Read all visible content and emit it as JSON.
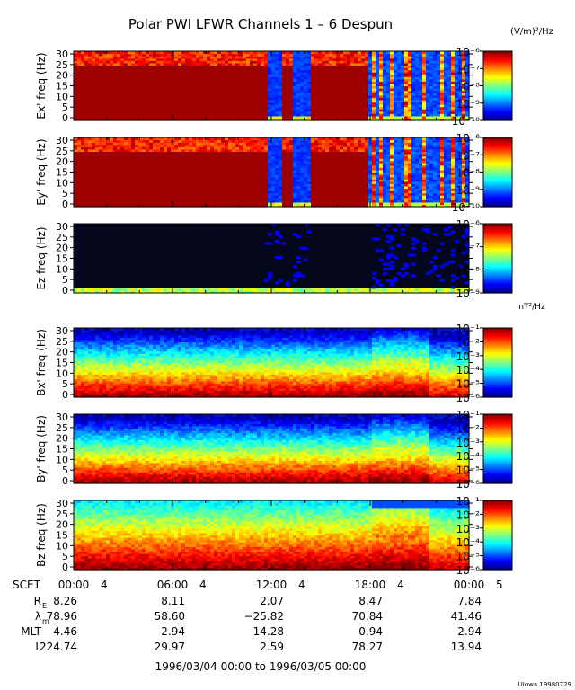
{
  "title": "Polar PWI LFWR Channels 1 – 6 Despun",
  "footer_text": "1996/03/04 00:00 to 1996/03/05 00:00",
  "credit": "UIowa 19980729",
  "e_unit_label": "(V/m)²/Hz",
  "b_unit_label": "nT²/Hz",
  "colors": {
    "saturated": "#ee1111",
    "quiet": "#0a1cc8",
    "dark": "#05071c"
  },
  "chart_data": [
    {
      "type": "heatmap",
      "channel": "ex",
      "ylabel": "Ex' freq (Hz)",
      "ylim": [
        0,
        30
      ],
      "yticks": [
        "0",
        "5",
        "10",
        "15",
        "20",
        "25",
        "30"
      ],
      "colorbar": {
        "ticks": [
          "10⁻⁶",
          "10⁻⁷",
          "10⁻⁸",
          "10⁻⁹",
          "10⁻¹⁰"
        ],
        "range": [
          -10,
          -6
        ]
      },
      "xlim": [
        0,
        24
      ],
      "events": [
        [
          11.7,
          12.7
        ],
        [
          13.4,
          14.4
        ],
        [
          18.0,
          24.0
        ]
      ]
    },
    {
      "type": "heatmap",
      "channel": "ey",
      "ylabel": "Ey' freq (Hz)",
      "ylim": [
        0,
        30
      ],
      "yticks": [
        "0",
        "5",
        "10",
        "15",
        "20",
        "25",
        "30"
      ],
      "colorbar": {
        "ticks": [
          "10⁻⁶",
          "10⁻⁷",
          "10⁻⁸",
          "10⁻⁹",
          "10⁻¹⁰"
        ],
        "range": [
          -10,
          -6
        ]
      },
      "xlim": [
        0,
        24
      ],
      "events": [
        [
          11.7,
          12.7
        ],
        [
          13.4,
          14.4
        ],
        [
          18.0,
          24.0
        ]
      ]
    },
    {
      "type": "heatmap",
      "channel": "ez",
      "ylabel": "Ez freq (Hz)",
      "ylim": [
        0,
        30
      ],
      "yticks": [
        "0",
        "5",
        "10",
        "15",
        "20",
        "25",
        "30"
      ],
      "colorbar": {
        "ticks": [
          "10⁻⁶",
          "10⁻⁷",
          "10⁻⁸",
          "10⁻⁹"
        ],
        "range": [
          -9,
          -6
        ]
      },
      "xlim": [
        0,
        24
      ]
    },
    {
      "type": "heatmap",
      "channel": "bx",
      "ylabel": "Bx' freq (Hz)",
      "ylim": [
        0,
        30
      ],
      "yticks": [
        "0",
        "5",
        "10",
        "15",
        "20",
        "25",
        "30"
      ],
      "colorbar": {
        "ticks": [
          "10⁻¹",
          "10⁻²",
          "10⁻³",
          "10⁻⁴",
          "10⁻⁵",
          "10⁻⁶"
        ],
        "range": [
          -6,
          -1
        ]
      },
      "xlim": [
        0,
        24
      ]
    },
    {
      "type": "heatmap",
      "channel": "by",
      "ylabel": "By' freq (Hz)",
      "ylim": [
        0,
        30
      ],
      "yticks": [
        "0",
        "5",
        "10",
        "15",
        "20",
        "25",
        "30"
      ],
      "colorbar": {
        "ticks": [
          "10⁻¹",
          "10⁻²",
          "10⁻³",
          "10⁻⁴",
          "10⁻⁵",
          "10⁻⁶"
        ],
        "range": [
          -6,
          -1
        ]
      },
      "xlim": [
        0,
        24
      ]
    },
    {
      "type": "heatmap",
      "channel": "bz",
      "ylabel": "Bz freq (Hz)",
      "ylim": [
        0,
        30
      ],
      "yticks": [
        "0",
        "5",
        "10",
        "15",
        "20",
        "25",
        "30"
      ],
      "colorbar": {
        "ticks": [
          "10⁻¹",
          "10⁻²",
          "10⁻³",
          "10⁻⁴",
          "10⁻⁵",
          "10⁻⁶"
        ],
        "range": [
          -6,
          -1
        ]
      },
      "xlim": [
        0,
        24
      ]
    }
  ],
  "time_axis": {
    "label": "SCET",
    "ticks": [
      {
        "hour": 0,
        "time": "00:00",
        "day": "4"
      },
      {
        "hour": 6,
        "time": "06:00",
        "day": "4"
      },
      {
        "hour": 12,
        "time": "12:00",
        "day": "4"
      },
      {
        "hour": 18,
        "time": "18:00",
        "day": "4"
      },
      {
        "hour": 24,
        "time": "00:00",
        "day": "5"
      }
    ]
  },
  "ephemeris": [
    {
      "label": "R",
      "sub": "E",
      "values": [
        "8.26",
        "8.11",
        "2.07",
        "8.47",
        "7.84"
      ]
    },
    {
      "label": "λ",
      "sub": "m",
      "values": [
        "78.96",
        "58.60",
        "−25.82",
        "70.84",
        "41.46"
      ]
    },
    {
      "label": "MLT",
      "sub": "",
      "values": [
        "4.46",
        "2.94",
        "14.28",
        "0.94",
        "2.94"
      ]
    },
    {
      "label": "L",
      "sub": "",
      "values": [
        "224.74",
        "29.97",
        "2.59",
        "78.27",
        "13.94"
      ]
    }
  ]
}
